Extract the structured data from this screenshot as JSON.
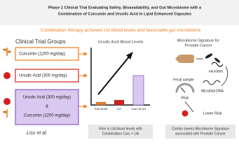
{
  "header": {
    "title_lines": [
      "Phase 1 Clinical Trial Evaluating Safety, Bioavailability, and Gut Microbiome with a",
      "Combination of Curcumin and Ursolic Acid in Lipid Enhanced Capsules"
    ],
    "subtitle": "Combination therapy achieves UA blood levels and favourable gut microbiome"
  },
  "groups": {
    "title": "Clinical Trial Groups",
    "items": [
      "Curcumin (1200 mg/day)",
      "Ursolic Acid (300 mg/day)"
    ],
    "combo": [
      "Ursolic Acid (300 mg/day)",
      "&",
      "Curcumin (1200 mg/day)"
    ],
    "citation": "Liss et al."
  },
  "blood": {
    "title": "Ursolic Acid Blood Levels",
    "bars": [
      "Curcumin",
      "UA",
      "Curc & UA"
    ],
    "caption_lines": [
      "Rise in UA blood levels with",
      "Combination Curc + UA"
    ]
  },
  "microbiome": {
    "title_lines": [
      "Microbiome Signature for",
      "Prostate Cancer"
    ],
    "labels": [
      "microbes",
      "Fecal sample",
      "Microbial DNA",
      "Risk",
      "Lower Risk"
    ],
    "caption_lines": [
      "Combo lowers Microbiome Signature",
      "associated with Prostate Cancer"
    ]
  }
}
